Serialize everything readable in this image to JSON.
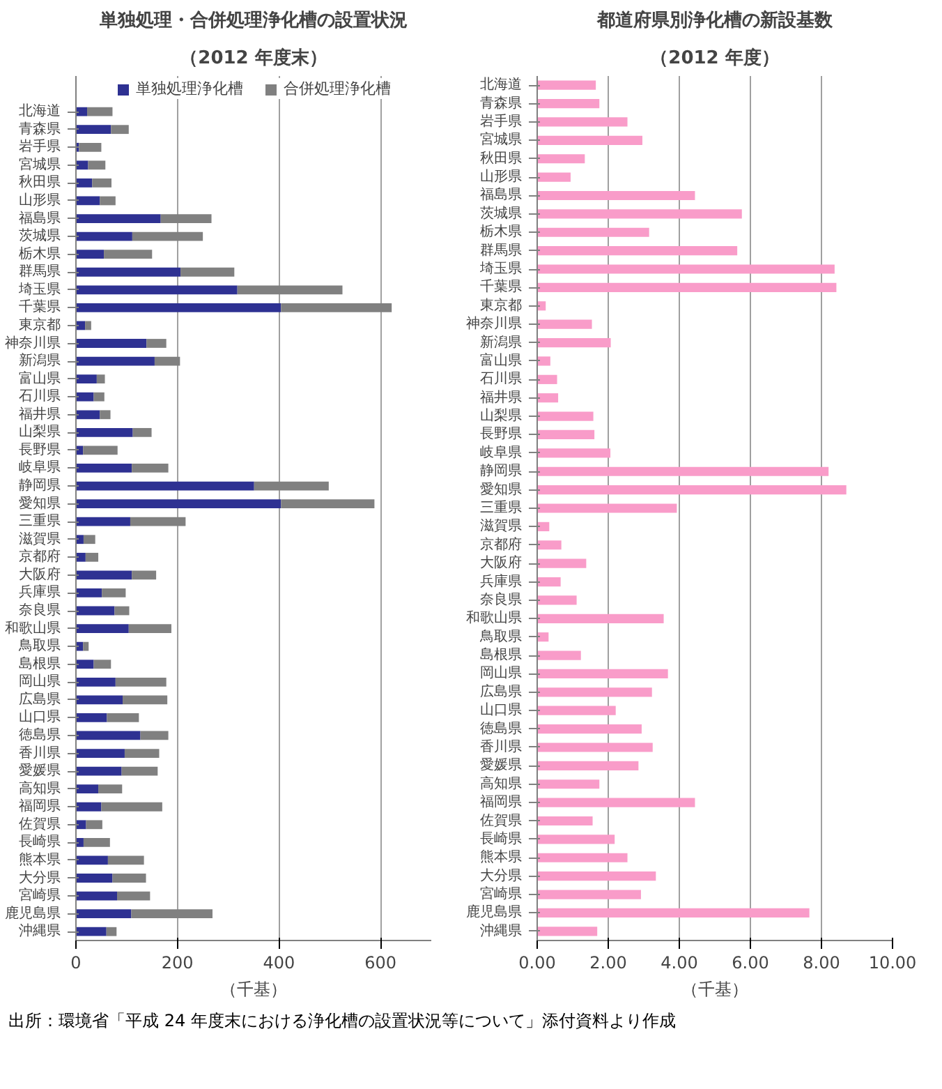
{
  "chart_data": [
    {
      "type": "bar",
      "orientation": "horizontal",
      "stacked": true,
      "title": "単独処理・合併処理浄化槽の設置状況",
      "subtitle": "（2012 年度末）",
      "xlabel": "（千基）",
      "categories": [
        "北海道",
        "青森県",
        "岩手県",
        "宮城県",
        "秋田県",
        "山形県",
        "福島県",
        "茨城県",
        "栃木県",
        "群馬県",
        "埼玉県",
        "千葉県",
        "東京都",
        "神奈川県",
        "新潟県",
        "富山県",
        "石川県",
        "福井県",
        "山梨県",
        "長野県",
        "岐阜県",
        "静岡県",
        "愛知県",
        "三重県",
        "滋賀県",
        "京都府",
        "大阪府",
        "兵庫県",
        "奈良県",
        "和歌山県",
        "鳥取県",
        "島根県",
        "岡山県",
        "広島県",
        "山口県",
        "徳島県",
        "香川県",
        "愛媛県",
        "高知県",
        "福岡県",
        "佐賀県",
        "長崎県",
        "熊本県",
        "大分県",
        "宮崎県",
        "鹿児島県",
        "沖縄県"
      ],
      "series": [
        {
          "name": "単独処理浄化槽",
          "color": "#2e3192",
          "values": [
            22,
            69,
            6,
            24,
            32,
            47,
            167,
            111,
            55,
            206,
            318,
            404,
            18,
            139,
            155,
            41,
            35,
            47,
            112,
            14,
            110,
            351,
            404,
            107,
            15,
            19,
            110,
            51,
            76,
            104,
            14,
            35,
            78,
            92,
            61,
            127,
            96,
            90,
            44,
            50,
            20,
            15,
            63,
            72,
            81,
            109,
            60
          ]
        },
        {
          "name": "合併処理浄化槽",
          "color": "#808080",
          "values": [
            50,
            35,
            44,
            34,
            38,
            31,
            100,
            139,
            95,
            106,
            207,
            218,
            12,
            39,
            50,
            16,
            21,
            21,
            37,
            68,
            72,
            147,
            184,
            109,
            23,
            25,
            48,
            47,
            29,
            84,
            11,
            34,
            100,
            88,
            63,
            55,
            68,
            71,
            47,
            120,
            32,
            52,
            71,
            66,
            65,
            160,
            20
          ]
        }
      ],
      "xlim": [
        0,
        700
      ],
      "xticks": [
        0,
        200,
        400,
        600
      ],
      "grid": "x",
      "legend": "top",
      "annotations": [
        "出所：環境省「平成 24 年度末における浄化槽の設置状況等について」添付資料より作成"
      ]
    },
    {
      "type": "bar",
      "orientation": "horizontal",
      "title": "都道府県別浄化槽の新設基数",
      "subtitle": "（2012 年度）",
      "xlabel": "（千基）",
      "categories": [
        "北海道",
        "青森県",
        "岩手県",
        "宮城県",
        "秋田県",
        "山形県",
        "福島県",
        "茨城県",
        "栃木県",
        "群馬県",
        "埼玉県",
        "千葉県",
        "東京都",
        "神奈川県",
        "新潟県",
        "富山県",
        "石川県",
        "福井県",
        "山梨県",
        "長野県",
        "岐阜県",
        "静岡県",
        "愛知県",
        "三重県",
        "滋賀県",
        "京都府",
        "大阪府",
        "兵庫県",
        "奈良県",
        "和歌山県",
        "鳥取県",
        "島根県",
        "岡山県",
        "広島県",
        "山口県",
        "徳島県",
        "香川県",
        "愛媛県",
        "高知県",
        "福岡県",
        "佐賀県",
        "長崎県",
        "熊本県",
        "大分県",
        "宮崎県",
        "鹿児島県",
        "沖縄県"
      ],
      "series": [
        {
          "color": "#f99cc9",
          "values": [
            1.65,
            1.75,
            2.54,
            2.96,
            1.34,
            0.94,
            4.44,
            5.76,
            3.15,
            5.63,
            8.37,
            8.42,
            0.24,
            1.54,
            2.07,
            0.37,
            0.56,
            0.59,
            1.58,
            1.61,
            2.06,
            8.2,
            8.7,
            3.93,
            0.34,
            0.68,
            1.38,
            0.66,
            1.11,
            3.56,
            0.32,
            1.23,
            3.68,
            3.23,
            2.21,
            2.94,
            3.25,
            2.85,
            1.75,
            4.44,
            1.56,
            2.18,
            2.54,
            3.34,
            2.92,
            7.66,
            1.69
          ]
        }
      ],
      "xlim": [
        0,
        10
      ],
      "xticks": [
        {
          "value": 0,
          "label": "0.00"
        },
        {
          "value": 2,
          "label": "2.00"
        },
        {
          "value": 4,
          "label": "4.00"
        },
        {
          "value": 6,
          "label": "6.00"
        },
        {
          "value": 8,
          "label": "8.00"
        },
        {
          "value": 10,
          "label": "10.00"
        }
      ],
      "grid": "x"
    }
  ]
}
